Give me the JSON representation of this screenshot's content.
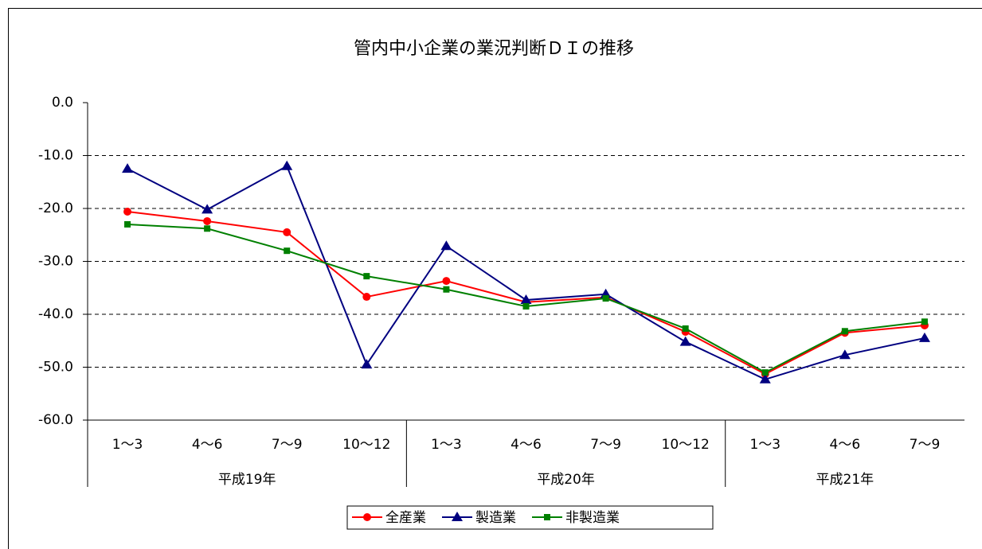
{
  "chart_data": {
    "type": "line",
    "title": "管内中小企業の業況判断ＤＩの推移",
    "groups": [
      {
        "name": "平成19年",
        "categories": [
          "1～3",
          "4～6",
          "7～9",
          "10～12"
        ]
      },
      {
        "name": "平成20年",
        "categories": [
          "1～3",
          "4～6",
          "7～9",
          "10～12"
        ]
      },
      {
        "name": "平成21年",
        "categories": [
          "1～3",
          "4～6",
          "7～9"
        ]
      }
    ],
    "series": [
      {
        "name": "全産業",
        "color": "#ff0000",
        "marker": "circle",
        "values": [
          -20.6,
          -22.4,
          -24.5,
          -36.7,
          -33.7,
          -37.7,
          -36.8,
          -43.3,
          -51.3,
          -43.5,
          -42.1
        ]
      },
      {
        "name": "製造業",
        "color": "#000080",
        "marker": "triangle",
        "values": [
          -12.5,
          -20.2,
          -12.0,
          -49.5,
          -27.1,
          -37.3,
          -36.2,
          -45.2,
          -52.3,
          -47.7,
          -44.5
        ]
      },
      {
        "name": "非製造業",
        "color": "#008000",
        "marker": "square",
        "values": [
          -23.0,
          -23.8,
          -28.0,
          -32.8,
          -35.3,
          -38.5,
          -37.0,
          -42.7,
          -51.0,
          -43.2,
          -41.4
        ]
      }
    ],
    "ylim": [
      -60,
      0
    ],
    "yticks": [
      {
        "value": 0,
        "label": "0.0"
      },
      {
        "value": -10,
        "label": "-10.0"
      },
      {
        "value": -20,
        "label": "-20.0"
      },
      {
        "value": -30,
        "label": "-30.0"
      },
      {
        "value": -40,
        "label": "-40.0"
      },
      {
        "value": -50,
        "label": "-50.0"
      },
      {
        "value": -60,
        "label": "-60.0"
      }
    ],
    "grid": true,
    "legend": "bottom"
  }
}
